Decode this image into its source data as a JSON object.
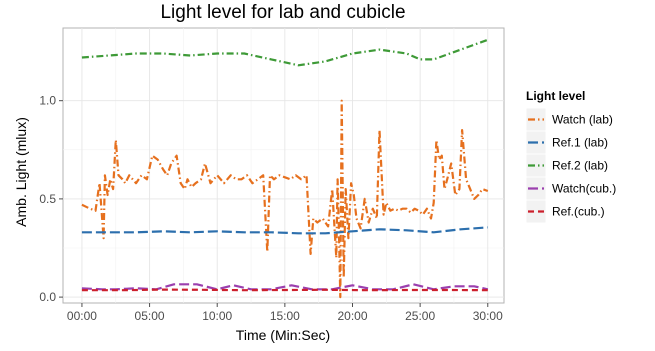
{
  "chart_data": {
    "type": "line",
    "title": "Light level for lab and cubicle",
    "xlabel": "Time (Min:Sec)",
    "ylabel": "Amb. Light (mlux)",
    "xlim": [
      -1.4,
      31.2
    ],
    "ylim": [
      -0.03,
      1.37
    ],
    "x_ticks": [
      0,
      5,
      10,
      15,
      20,
      25,
      30
    ],
    "x_tick_labels": [
      "00:00",
      "05:00",
      "10:00",
      "15:00",
      "20:00",
      "25:00",
      "30:00"
    ],
    "y_ticks": [
      0.0,
      0.5,
      1.0
    ],
    "y_tick_labels": [
      "0.0",
      "0.5",
      "1.0"
    ],
    "grid": true,
    "legend_position": "right",
    "legend_title": "Light level",
    "series": [
      {
        "name": "Watch (lab)",
        "color": "#e6701e",
        "dash": "dotdash",
        "x": [
          0,
          0.6,
          1.0,
          1.3,
          1.6,
          1.7,
          1.9,
          2.1,
          2.3,
          2.5,
          2.7,
          3.0,
          3.2,
          3.5,
          4.0,
          4.4,
          4.8,
          5.2,
          5.6,
          6.0,
          6.3,
          6.6,
          7.0,
          7.3,
          7.6,
          7.8,
          8.1,
          8.4,
          8.8,
          9.1,
          9.5,
          10.0,
          10.5,
          11.0,
          11.4,
          11.8,
          12.2,
          12.6,
          13.0,
          13.4,
          13.7,
          13.9,
          14.2,
          14.6,
          15.0,
          15.4,
          15.8,
          16.2,
          16.6,
          16.9,
          17.1,
          17.4,
          17.8,
          18.2,
          18.5,
          18.8,
          18.9,
          19.0,
          19.1,
          19.2,
          19.35,
          19.5,
          19.7,
          19.9,
          20.1,
          20.3,
          20.6,
          20.9,
          21.2,
          21.5,
          21.8,
          22.0,
          22.3,
          22.5,
          22.8,
          23.1,
          23.4,
          23.7,
          24.0,
          24.3,
          24.6,
          24.9,
          25.2,
          25.5,
          25.8,
          26.0,
          26.2,
          26.4,
          26.6,
          26.8,
          27.0,
          27.3,
          27.6,
          27.9,
          28.1,
          28.4,
          28.7,
          29.0,
          29.3,
          29.6,
          30.0
        ],
        "y": [
          0.47,
          0.45,
          0.44,
          0.58,
          0.3,
          0.62,
          0.52,
          0.6,
          0.55,
          0.8,
          0.62,
          0.6,
          0.58,
          0.62,
          0.58,
          0.62,
          0.6,
          0.72,
          0.7,
          0.65,
          0.62,
          0.68,
          0.72,
          0.58,
          0.55,
          0.6,
          0.56,
          0.58,
          0.6,
          0.68,
          0.58,
          0.62,
          0.58,
          0.62,
          0.6,
          0.6,
          0.62,
          0.58,
          0.6,
          0.62,
          0.23,
          0.62,
          0.6,
          0.62,
          0.61,
          0.6,
          0.62,
          0.6,
          0.62,
          0.22,
          0.4,
          0.38,
          0.4,
          0.36,
          0.55,
          0.2,
          0.6,
          0.32,
          0.0,
          1.0,
          0.1,
          0.55,
          0.3,
          0.58,
          0.52,
          0.4,
          0.35,
          0.5,
          0.38,
          0.45,
          0.4,
          0.85,
          0.42,
          0.48,
          0.44,
          0.45,
          0.44,
          0.45,
          0.45,
          0.43,
          0.45,
          0.44,
          0.42,
          0.45,
          0.4,
          0.48,
          0.8,
          0.7,
          0.72,
          0.55,
          0.6,
          0.68,
          0.52,
          0.55,
          0.85,
          0.6,
          0.55,
          0.5,
          0.52,
          0.55,
          0.54
        ]
      },
      {
        "name": "Ref.1 (lab)",
        "color": "#2c6fad",
        "dash": "longdash",
        "x": [
          0,
          2,
          4,
          6,
          8,
          10,
          12,
          14,
          16,
          18,
          20,
          22,
          24,
          26,
          28,
          30
        ],
        "y": [
          0.33,
          0.33,
          0.33,
          0.335,
          0.33,
          0.335,
          0.33,
          0.33,
          0.325,
          0.325,
          0.335,
          0.345,
          0.34,
          0.33,
          0.345,
          0.355
        ]
      },
      {
        "name": "Ref.2 (lab)",
        "color": "#3e9a37",
        "dash": "dotdash",
        "x": [
          0,
          2,
          4,
          6,
          8,
          10,
          12,
          14,
          16,
          18,
          20,
          22,
          24,
          25,
          26,
          28,
          30
        ],
        "y": [
          1.22,
          1.23,
          1.24,
          1.24,
          1.23,
          1.24,
          1.24,
          1.21,
          1.18,
          1.2,
          1.24,
          1.26,
          1.24,
          1.21,
          1.21,
          1.26,
          1.31
        ]
      },
      {
        "name": "Watch(cub.)",
        "color": "#9b3fae",
        "dash": "longdash",
        "x": [
          0,
          1.5,
          2.5,
          4,
          5.5,
          6.8,
          8.5,
          10,
          11.2,
          12.5,
          14,
          15.5,
          17,
          18.5,
          20,
          21.5,
          23,
          24.5,
          26,
          27.5,
          29,
          30
        ],
        "y": [
          0.045,
          0.04,
          0.04,
          0.045,
          0.04,
          0.065,
          0.065,
          0.04,
          0.06,
          0.04,
          0.04,
          0.06,
          0.04,
          0.04,
          0.06,
          0.04,
          0.04,
          0.065,
          0.04,
          0.055,
          0.055,
          0.04
        ]
      },
      {
        "name": "Ref.(cub.)",
        "color": "#cc1f2c",
        "dash": "dashed",
        "x": [
          0,
          3,
          6,
          9,
          12,
          15,
          18,
          21,
          24,
          27,
          30
        ],
        "y": [
          0.035,
          0.035,
          0.038,
          0.037,
          0.035,
          0.036,
          0.037,
          0.035,
          0.036,
          0.036,
          0.035
        ]
      }
    ]
  }
}
